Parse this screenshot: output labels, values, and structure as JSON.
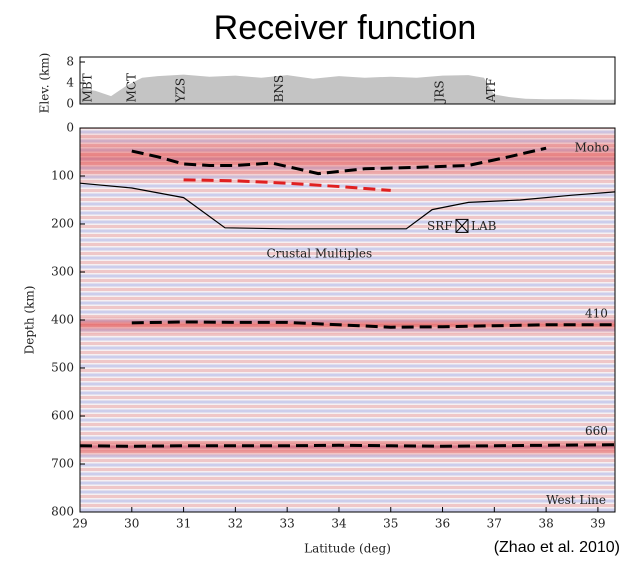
{
  "title": "Receiver function",
  "caption": "(Zhao et al. 2010)",
  "chart_data": [
    {
      "type": "area",
      "y_label": "Elev. (km)",
      "color": "#c4c4c4",
      "x": [
        29,
        29.3,
        29.6,
        29.9,
        30.2,
        30.5,
        31,
        31.5,
        32,
        32.5,
        33,
        33.5,
        34,
        34.5,
        35,
        35.5,
        36,
        36.5,
        36.8,
        37,
        37.3,
        37.6,
        38,
        38.5,
        39,
        39.33
      ],
      "values": [
        3,
        2.5,
        1.5,
        3.5,
        5,
        5.3,
        5.6,
        5.2,
        5.4,
        5,
        5.5,
        4.8,
        5.3,
        5,
        5.2,
        5,
        5.4,
        5.5,
        5,
        1.8,
        1.3,
        1,
        0.9,
        0.9,
        0.8,
        0.8
      ],
      "xlim": [
        29,
        39.33
      ],
      "ylim": [
        0,
        8
      ],
      "yticks": [
        0,
        4,
        8
      ],
      "annotations": [
        {
          "text": "MBT",
          "x": 29.15,
          "y": 0.3
        },
        {
          "text": "MCT",
          "x": 30,
          "y": 0.3
        },
        {
          "text": "YZS",
          "x": 30.95,
          "y": 0.3
        },
        {
          "text": "BNS",
          "x": 32.85,
          "y": 0.3
        },
        {
          "text": "JRS",
          "x": 35.95,
          "y": 0.3
        },
        {
          "text": "ATF",
          "x": 36.95,
          "y": 0.3
        }
      ]
    },
    {
      "type": "line",
      "y_label": "Depth (km)",
      "x_label": "Latitude (deg)",
      "xlim": [
        29,
        39.33
      ],
      "xticks": [
        29,
        30,
        31,
        32,
        33,
        34,
        35,
        36,
        37,
        38,
        39
      ],
      "ylim": [
        800,
        0
      ],
      "yticks": [
        0,
        100,
        200,
        300,
        400,
        500,
        600,
        700,
        800
      ],
      "series": [
        {
          "color": "#000000",
          "dash": true,
          "x": [
            30,
            30.5,
            31,
            31.5,
            32,
            32.7,
            33.2,
            33.6,
            34.5,
            35.5,
            36.5,
            37.2,
            38
          ],
          "values": [
            48,
            60,
            75,
            78,
            78,
            73,
            85,
            95,
            85,
            82,
            78,
            62,
            42
          ]
        },
        {
          "color": "#e02020",
          "dash": true,
          "x": [
            31,
            32,
            33,
            34,
            35
          ],
          "values": [
            108,
            110,
            115,
            122,
            130
          ]
        },
        {
          "color": "#000000",
          "dash": false,
          "x": [
            29,
            30,
            31,
            31.8,
            33,
            35.3,
            35.8,
            36.5,
            37.5,
            38.5,
            39.33
          ],
          "values": [
            115,
            125,
            145,
            208,
            210,
            210,
            170,
            155,
            150,
            140,
            133
          ]
        },
        {
          "color": "#000000",
          "dash": true,
          "x": [
            30,
            31,
            32,
            33,
            34,
            35,
            36,
            37,
            38,
            39.33
          ],
          "values": [
            406,
            404,
            405,
            405,
            410,
            415,
            414,
            412,
            410,
            410
          ]
        },
        {
          "color": "#000000",
          "dash": true,
          "x": [
            29,
            30,
            31,
            32,
            33,
            34,
            35,
            36,
            37,
            38,
            39.33
          ],
          "values": [
            662,
            663,
            662,
            662,
            662,
            661,
            662,
            663,
            662,
            661,
            660
          ]
        }
      ],
      "annotations": [
        {
          "text": "Moho",
          "x": 38.55,
          "y": 42
        },
        {
          "text": "SRF",
          "x": 35.7,
          "y": 205
        },
        {
          "text": "LAB",
          "x": 36.55,
          "y": 205
        },
        {
          "text": "Crustal Multiples",
          "x": 32.6,
          "y": 262
        },
        {
          "text": "410",
          "x": 38.75,
          "y": 388
        },
        {
          "text": "660",
          "x": 38.75,
          "y": 632
        },
        {
          "text": "West Line",
          "x": 38,
          "y": 776
        }
      ]
    }
  ]
}
